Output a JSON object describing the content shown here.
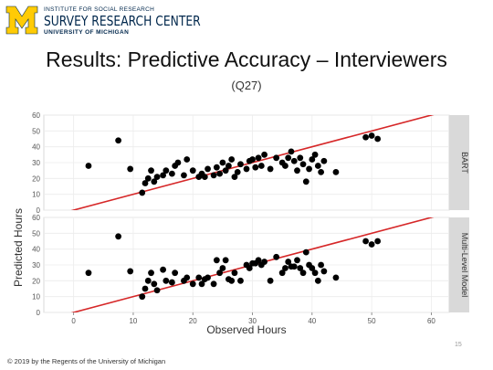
{
  "logo": {
    "line1": "INSTITUTE FOR SOCIAL RESEARCH",
    "line2": "SURVEY RESEARCH CENTER",
    "line3": "UNIVERSITY OF MICHIGAN",
    "brand_colors": {
      "maize": "#FFCB05",
      "blue": "#00274C"
    }
  },
  "title": "Results: Predictive Accuracy – Interviewers",
  "subtitle": "(Q27)",
  "footer": "© 2019 by the Regents of the University of Michigan",
  "page_number": "15",
  "chart_data": {
    "type": "scatter",
    "xlabel": "Observed Hours",
    "ylabel": "Predicted Hours",
    "xlim": [
      -5,
      63
    ],
    "ylim": [
      0,
      60
    ],
    "xticks": [
      0,
      10,
      20,
      30,
      40,
      50,
      60
    ],
    "yticks": [
      0,
      10,
      20,
      30,
      40,
      50,
      60
    ],
    "grid": true,
    "reference_line": {
      "slope": 1,
      "intercept": 0,
      "color": "#d62728"
    },
    "point_color": "#000000",
    "panel_strip_color": "#d9d9d9",
    "panels": [
      {
        "label": "BART",
        "points": [
          [
            2.5,
            28
          ],
          [
            7.5,
            44
          ],
          [
            9.5,
            26
          ],
          [
            11.5,
            11
          ],
          [
            12,
            17
          ],
          [
            12.5,
            20
          ],
          [
            13,
            25
          ],
          [
            13.5,
            18
          ],
          [
            14,
            21
          ],
          [
            15,
            22
          ],
          [
            15.5,
            25
          ],
          [
            16.5,
            23
          ],
          [
            17,
            28
          ],
          [
            17.5,
            30
          ],
          [
            18.5,
            22
          ],
          [
            19,
            32
          ],
          [
            20,
            25
          ],
          [
            21,
            21
          ],
          [
            21.5,
            23
          ],
          [
            22,
            21
          ],
          [
            22.5,
            26
          ],
          [
            23.5,
            22
          ],
          [
            24,
            27
          ],
          [
            24.5,
            23
          ],
          [
            25,
            30
          ],
          [
            25.5,
            25
          ],
          [
            26,
            28
          ],
          [
            26.5,
            32
          ],
          [
            27,
            21
          ],
          [
            27.5,
            24
          ],
          [
            28,
            29
          ],
          [
            29,
            26
          ],
          [
            29.5,
            31
          ],
          [
            30,
            32
          ],
          [
            30.5,
            27
          ],
          [
            31,
            33
          ],
          [
            31.5,
            28
          ],
          [
            32,
            35
          ],
          [
            33,
            26
          ],
          [
            34,
            33
          ],
          [
            35,
            30
          ],
          [
            35.5,
            28
          ],
          [
            36,
            33
          ],
          [
            36.5,
            37
          ],
          [
            37,
            31
          ],
          [
            37.5,
            25
          ],
          [
            38,
            33
          ],
          [
            38.5,
            29
          ],
          [
            39,
            18
          ],
          [
            39.5,
            26
          ],
          [
            40,
            32
          ],
          [
            40.5,
            35
          ],
          [
            41,
            28
          ],
          [
            41.5,
            24
          ],
          [
            42,
            31
          ],
          [
            44,
            24
          ],
          [
            49,
            46
          ],
          [
            50,
            47
          ],
          [
            51,
            45
          ]
        ]
      },
      {
        "label": "Multi-Level Model",
        "points": [
          [
            2.5,
            25
          ],
          [
            7.5,
            48
          ],
          [
            9.5,
            26
          ],
          [
            11.5,
            10
          ],
          [
            12,
            15
          ],
          [
            12.5,
            20
          ],
          [
            13,
            25
          ],
          [
            13.5,
            18
          ],
          [
            14,
            14
          ],
          [
            15,
            27
          ],
          [
            15.5,
            20
          ],
          [
            16.5,
            19
          ],
          [
            17,
            25
          ],
          [
            18.5,
            20
          ],
          [
            19,
            22
          ],
          [
            20,
            18
          ],
          [
            21,
            22
          ],
          [
            21.5,
            18
          ],
          [
            22,
            21
          ],
          [
            22.5,
            22
          ],
          [
            23.5,
            18
          ],
          [
            24,
            33
          ],
          [
            24.5,
            25
          ],
          [
            25,
            28
          ],
          [
            25.5,
            33
          ],
          [
            26,
            21
          ],
          [
            26.5,
            20
          ],
          [
            27,
            25
          ],
          [
            28,
            20
          ],
          [
            29,
            30
          ],
          [
            29.5,
            28
          ],
          [
            30,
            31
          ],
          [
            30.5,
            31
          ],
          [
            31,
            33
          ],
          [
            31.5,
            30
          ],
          [
            32,
            32
          ],
          [
            33,
            20
          ],
          [
            34,
            35
          ],
          [
            35,
            25
          ],
          [
            35.5,
            28
          ],
          [
            36,
            32
          ],
          [
            36.5,
            29
          ],
          [
            37,
            29
          ],
          [
            37.5,
            33
          ],
          [
            38,
            28
          ],
          [
            38.5,
            25
          ],
          [
            39,
            38
          ],
          [
            39.5,
            30
          ],
          [
            40,
            28
          ],
          [
            40.5,
            25
          ],
          [
            41,
            20
          ],
          [
            41.5,
            30
          ],
          [
            42,
            26
          ],
          [
            44,
            22
          ],
          [
            49,
            45
          ],
          [
            50,
            43
          ],
          [
            51,
            45
          ]
        ]
      }
    ]
  }
}
